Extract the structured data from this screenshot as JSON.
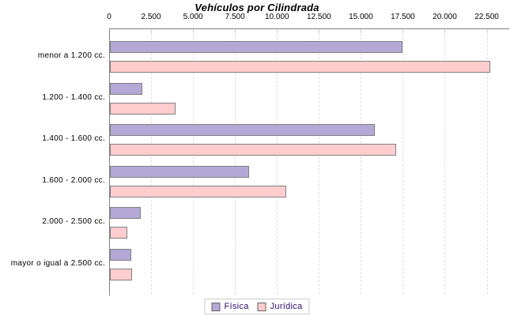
{
  "chart_data": {
    "type": "bar",
    "orientation": "horizontal",
    "title": "Vehículos por Cilindrada",
    "categories": [
      "menor a 1.200 cc.",
      "1.200 - 1.400 cc.",
      "1.400 - 1.600 cc.",
      "1.600 - 2.000 cc.",
      "2.000 - 2.500 cc.",
      "mayor o igual a 2.500 cc."
    ],
    "series": [
      {
        "name": "Física",
        "values": [
          17450,
          1950,
          15800,
          8300,
          1850,
          1270
        ]
      },
      {
        "name": "Jurídica",
        "values": [
          22650,
          3900,
          17050,
          10500,
          1050,
          1330
        ]
      }
    ],
    "xlim": [
      0,
      22500
    ],
    "tick_step": 2500,
    "tick_labels": [
      "0",
      "2.500",
      "5.000",
      "7.500",
      "10.000",
      "12.500",
      "15.000",
      "17.500",
      "20.000",
      "22.500"
    ],
    "grid": "vertical-dashed",
    "legend_position": "bottom",
    "xlabel": "",
    "ylabel": ""
  },
  "style": {
    "series_colors": [
      "#b3a8d6",
      "#ffcdcd"
    ],
    "bar_border": "#808080",
    "axis_color": "#808080",
    "gridline_color": "#dedede",
    "legend_text_color": "#2d0a6b",
    "legend_border_color": "#cccccc",
    "background": "#ffffff"
  }
}
